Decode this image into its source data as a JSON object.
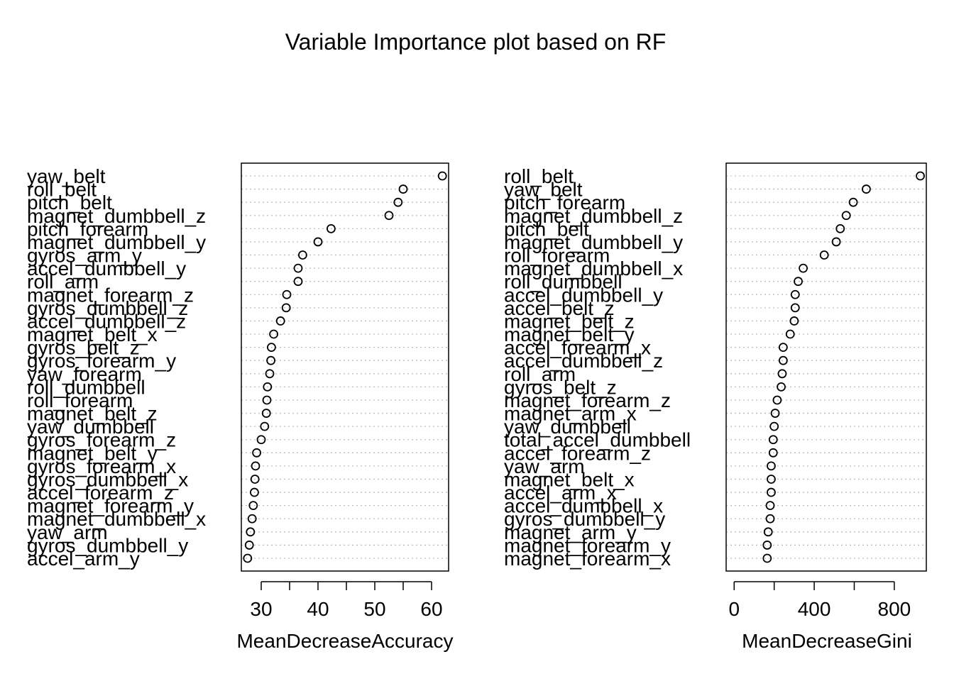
{
  "title": "Variable Importance plot based on RF",
  "chart_data": [
    {
      "type": "dotchart",
      "xlabel": "MeanDecreaseAccuracy",
      "xlim": [
        26.5,
        63
      ],
      "ticks": [
        30,
        40,
        50,
        60
      ],
      "grid": "dotted horizontal lines per variable",
      "labels": [
        "yaw_belt",
        "roll_belt",
        "pitch_belt",
        "magnet_dumbbell_z",
        "pitch_forearm",
        "magnet_dumbbell_y",
        "gyros_arm_y",
        "accel_dumbbell_y",
        "roll_arm",
        "magnet_forearm_z",
        "gyros_dumbbell_z",
        "accel_dumbbell_z",
        "magnet_belt_x",
        "gyros_belt_z",
        "gyros_forearm_y",
        "yaw_forearm",
        "roll_dumbbell",
        "roll_forearm",
        "magnet_belt_z",
        "yaw_dumbbell",
        "gyros_forearm_z",
        "magnet_belt_y",
        "gyros_forearm_x",
        "gyros_dumbbell_x",
        "accel_forearm_z",
        "magnet_forearm_y",
        "magnet_dumbbell_x",
        "yaw_arm",
        "gyros_dumbbell_y",
        "accel_arm_y"
      ],
      "values": [
        61.9,
        55.0,
        54.1,
        52.5,
        42.3,
        40.0,
        37.3,
        36.5,
        36.5,
        34.5,
        34.4,
        33.4,
        32.2,
        31.8,
        31.7,
        31.5,
        31.1,
        31.0,
        30.9,
        30.6,
        30.0,
        29.2,
        29.0,
        28.9,
        28.8,
        28.6,
        28.4,
        28.1,
        27.9,
        27.6
      ]
    },
    {
      "type": "dotchart",
      "xlabel": "MeanDecreaseGini",
      "xlim": [
        -40,
        960
      ],
      "ticks": [
        0,
        400,
        800
      ],
      "minor_ticks": [
        200,
        600
      ],
      "grid": "dotted horizontal lines per variable",
      "labels": [
        "roll_belt",
        "yaw_belt",
        "pitch_forearm",
        "magnet_dumbbell_z",
        "pitch_belt",
        "magnet_dumbbell_y",
        "roll_forearm",
        "magnet_dumbbell_x",
        "roll_dumbbell",
        "accel_dumbbell_y",
        "accel_belt_z",
        "magnet_belt_z",
        "magnet_belt_y",
        "accel_forearm_x",
        "accel_dumbbell_z",
        "roll_arm",
        "gyros_belt_z",
        "magnet_forearm_z",
        "magnet_arm_x",
        "yaw_dumbbell",
        "total_accel_dumbbell",
        "accel_forearm_z",
        "yaw_arm",
        "magnet_belt_x",
        "accel_arm_x",
        "accel_dumbbell_x",
        "gyros_dumbbell_y",
        "magnet_arm_y",
        "magnet_forearm_y",
        "magnet_forearm_x"
      ],
      "values": [
        930,
        660,
        595,
        560,
        530,
        510,
        450,
        345,
        320,
        305,
        305,
        300,
        280,
        245,
        245,
        240,
        235,
        215,
        205,
        200,
        195,
        195,
        185,
        185,
        185,
        180,
        180,
        170,
        165,
        165
      ]
    }
  ]
}
